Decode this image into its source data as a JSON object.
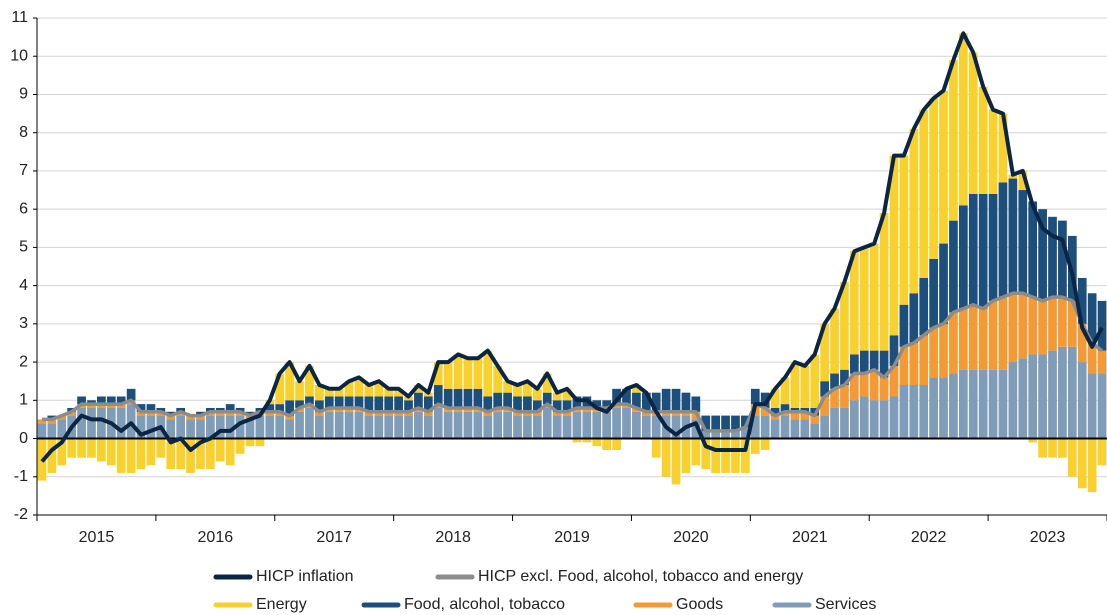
{
  "chart_data": {
    "type": "bar",
    "categories": [
      null,
      null,
      null,
      null,
      null,
      null,
      "2015",
      null,
      null,
      null,
      null,
      null,
      null,
      null,
      null,
      null,
      null,
      null,
      "2016",
      null,
      null,
      null,
      null,
      null,
      null,
      null,
      null,
      null,
      null,
      null,
      "2017",
      null,
      null,
      null,
      null,
      null,
      null,
      null,
      null,
      null,
      null,
      null,
      "2018",
      null,
      null,
      null,
      null,
      null,
      null,
      null,
      null,
      null,
      null,
      null,
      "2019",
      null,
      null,
      null,
      null,
      null,
      null,
      null,
      null,
      null,
      null,
      null,
      "2020",
      null,
      null,
      null,
      null,
      null,
      null,
      null,
      null,
      null,
      null,
      null,
      "2021",
      null,
      null,
      null,
      null,
      null,
      null,
      null,
      null,
      null,
      null,
      null,
      "2022",
      null,
      null,
      null,
      null,
      null,
      null,
      null,
      null,
      null,
      null,
      null,
      "2023",
      null,
      null,
      null,
      null,
      null
    ],
    "ylim": [
      -2,
      11
    ],
    "yticks": [
      -2,
      -1,
      0,
      1,
      2,
      3,
      4,
      5,
      6,
      7,
      8,
      9,
      10,
      11
    ],
    "grid": true,
    "series": [
      {
        "name": "HICP inflation",
        "type": "line",
        "color": "#0b2545",
        "values": [
          -0.6,
          -0.3,
          -0.1,
          0.3,
          0.6,
          0.5,
          0.5,
          0.4,
          0.2,
          0.4,
          0.1,
          0.2,
          0.3,
          -0.1,
          0.0,
          -0.3,
          -0.1,
          0.0,
          0.2,
          0.2,
          0.4,
          0.5,
          0.6,
          1.0,
          1.7,
          2.0,
          1.5,
          1.9,
          1.4,
          1.3,
          1.3,
          1.5,
          1.6,
          1.4,
          1.5,
          1.3,
          1.3,
          1.1,
          1.4,
          1.2,
          2.0,
          2.0,
          2.2,
          2.1,
          2.1,
          2.3,
          1.9,
          1.5,
          1.4,
          1.5,
          1.3,
          1.7,
          1.2,
          1.3,
          1.0,
          1.0,
          0.8,
          0.7,
          1.0,
          1.3,
          1.4,
          1.2,
          0.7,
          0.3,
          0.1,
          0.3,
          0.4,
          -0.2,
          -0.3,
          -0.3,
          -0.3,
          -0.3,
          0.9,
          0.9,
          1.3,
          1.6,
          2.0,
          1.9,
          2.2,
          3.0,
          3.4,
          4.1,
          4.9,
          5.0,
          5.1,
          5.9,
          7.4,
          7.4,
          8.1,
          8.6,
          8.9,
          9.1,
          9.9,
          10.6,
          10.1,
          9.2,
          8.6,
          8.5,
          6.9,
          7.0,
          6.1,
          5.5,
          5.3,
          5.2,
          4.3,
          2.9,
          2.4,
          2.9
        ]
      },
      {
        "name": "HICP excl. Food, alcohol, tobacco and energy",
        "type": "line",
        "color": "#8c8c8c",
        "values": [
          0.5,
          0.5,
          0.6,
          0.7,
          0.9,
          0.9,
          0.9,
          0.9,
          0.9,
          1.0,
          0.7,
          0.7,
          0.7,
          0.6,
          0.7,
          0.6,
          0.6,
          0.7,
          0.7,
          0.7,
          0.7,
          0.6,
          0.7,
          0.7,
          0.7,
          0.6,
          0.8,
          0.9,
          0.7,
          0.8,
          0.8,
          0.8,
          0.8,
          0.7,
          0.7,
          0.7,
          0.7,
          0.7,
          0.8,
          0.7,
          0.9,
          0.8,
          0.8,
          0.8,
          0.8,
          0.7,
          0.8,
          0.8,
          0.7,
          0.7,
          0.7,
          0.9,
          0.7,
          0.7,
          0.8,
          0.8,
          0.8,
          0.8,
          0.9,
          0.9,
          0.8,
          0.7,
          0.7,
          0.7,
          0.7,
          0.7,
          0.7,
          0.2,
          0.2,
          0.2,
          0.2,
          0.3,
          0.9,
          0.8,
          0.6,
          0.7,
          0.7,
          0.7,
          0.6,
          1.1,
          1.3,
          1.4,
          1.7,
          1.7,
          1.8,
          1.6,
          1.9,
          2.4,
          2.5,
          2.7,
          2.9,
          3.0,
          3.3,
          3.4,
          3.5,
          3.4,
          3.6,
          3.7,
          3.8,
          3.8,
          3.7,
          3.6,
          3.7,
          3.7,
          3.6,
          3.0,
          2.5,
          2.3
        ]
      },
      {
        "name": "Energy",
        "type": "bar",
        "color": "#f8d12f",
        "values": [
          -1.1,
          -0.9,
          -0.7,
          -0.5,
          -0.5,
          -0.5,
          -0.6,
          -0.7,
          -0.9,
          -0.9,
          -0.8,
          -0.7,
          -0.5,
          -0.8,
          -0.8,
          -0.9,
          -0.8,
          -0.8,
          -0.6,
          -0.7,
          -0.4,
          -0.2,
          -0.2,
          0.1,
          0.8,
          1.0,
          0.5,
          0.8,
          0.4,
          0.2,
          0.2,
          0.4,
          0.5,
          0.3,
          0.4,
          0.2,
          0.2,
          0.1,
          0.2,
          0.1,
          0.6,
          0.7,
          0.9,
          0.8,
          0.8,
          1.2,
          0.7,
          0.3,
          0.3,
          0.4,
          0.3,
          0.5,
          0.2,
          0.3,
          -0.1,
          -0.1,
          -0.2,
          -0.3,
          -0.3,
          0.0,
          0.2,
          0.0,
          -0.5,
          -1.0,
          -1.2,
          -0.9,
          -0.7,
          -0.8,
          -0.9,
          -0.9,
          -0.9,
          -0.9,
          -0.4,
          -0.3,
          0.5,
          0.7,
          1.2,
          1.1,
          1.4,
          1.5,
          1.7,
          2.3,
          2.7,
          2.7,
          2.8,
          3.6,
          4.7,
          3.9,
          4.3,
          4.4,
          4.2,
          4.0,
          4.2,
          4.5,
          3.7,
          2.8,
          2.2,
          1.8,
          0.1,
          0.5,
          -0.1,
          -0.5,
          -0.5,
          -0.5,
          -1.0,
          -1.3,
          -1.4,
          -0.7
        ]
      },
      {
        "name": "Food, alcohol, tobacco",
        "type": "bar",
        "color": "#1d4f7c",
        "values": [
          0.0,
          0.1,
          0.0,
          0.1,
          0.2,
          0.1,
          0.2,
          0.2,
          0.2,
          0.3,
          0.2,
          0.2,
          0.1,
          0.1,
          0.1,
          0.0,
          0.1,
          0.1,
          0.1,
          0.2,
          0.1,
          0.1,
          0.1,
          0.2,
          0.2,
          0.4,
          0.2,
          0.2,
          0.3,
          0.3,
          0.3,
          0.3,
          0.3,
          0.4,
          0.4,
          0.4,
          0.4,
          0.3,
          0.4,
          0.4,
          0.5,
          0.5,
          0.5,
          0.5,
          0.5,
          0.4,
          0.4,
          0.4,
          0.4,
          0.4,
          0.3,
          0.3,
          0.3,
          0.3,
          0.3,
          0.3,
          0.2,
          0.2,
          0.4,
          0.4,
          0.4,
          0.5,
          0.5,
          0.6,
          0.6,
          0.5,
          0.4,
          0.4,
          0.4,
          0.4,
          0.4,
          0.3,
          0.4,
          0.4,
          0.2,
          0.2,
          0.1,
          0.1,
          0.2,
          0.4,
          0.4,
          0.4,
          0.5,
          0.6,
          0.5,
          0.7,
          0.8,
          1.1,
          1.3,
          1.5,
          1.8,
          2.1,
          2.4,
          2.7,
          2.9,
          3.0,
          2.8,
          3.0,
          3.0,
          2.7,
          2.5,
          2.4,
          2.1,
          2.0,
          1.7,
          1.2,
          1.3,
          1.3
        ]
      },
      {
        "name": "Goods",
        "type": "bar",
        "color": "#f39a35",
        "values": [
          0.1,
          0.1,
          0.1,
          0.1,
          0.1,
          0.1,
          0.1,
          0.1,
          0.1,
          0.1,
          0.1,
          0.1,
          0.1,
          0.1,
          0.1,
          0.1,
          0.1,
          0.1,
          0.1,
          0.1,
          0.1,
          0.1,
          0.1,
          0.1,
          0.1,
          0.1,
          0.1,
          0.1,
          0.1,
          0.1,
          0.1,
          0.1,
          0.1,
          0.1,
          0.1,
          0.1,
          0.1,
          0.1,
          0.1,
          0.1,
          0.1,
          0.1,
          0.1,
          0.1,
          0.1,
          0.1,
          0.1,
          0.1,
          0.1,
          0.1,
          0.1,
          0.1,
          0.1,
          0.1,
          0.1,
          0.1,
          0.1,
          0.1,
          0.1,
          0.1,
          0.1,
          0.1,
          0.1,
          0.1,
          0.1,
          0.1,
          0.2,
          0.0,
          0.0,
          0.0,
          0.0,
          0.0,
          0.3,
          0.2,
          0.1,
          0.1,
          0.2,
          0.2,
          0.2,
          0.5,
          0.5,
          0.6,
          0.7,
          0.6,
          0.8,
          0.6,
          0.8,
          1.0,
          1.1,
          1.3,
          1.3,
          1.4,
          1.6,
          1.6,
          1.7,
          1.6,
          1.8,
          1.9,
          1.8,
          1.7,
          1.5,
          1.4,
          1.4,
          1.3,
          1.2,
          1.0,
          0.8,
          0.6
        ]
      },
      {
        "name": "Services",
        "type": "bar",
        "color": "#7f9cb8",
        "values": [
          0.4,
          0.4,
          0.5,
          0.6,
          0.8,
          0.8,
          0.8,
          0.8,
          0.8,
          0.9,
          0.6,
          0.6,
          0.6,
          0.5,
          0.6,
          0.5,
          0.5,
          0.6,
          0.6,
          0.6,
          0.6,
          0.5,
          0.6,
          0.6,
          0.6,
          0.5,
          0.7,
          0.8,
          0.6,
          0.7,
          0.7,
          0.7,
          0.7,
          0.6,
          0.6,
          0.6,
          0.6,
          0.6,
          0.7,
          0.6,
          0.8,
          0.7,
          0.7,
          0.7,
          0.7,
          0.6,
          0.7,
          0.7,
          0.6,
          0.6,
          0.6,
          0.8,
          0.6,
          0.6,
          0.7,
          0.7,
          0.7,
          0.7,
          0.8,
          0.8,
          0.7,
          0.6,
          0.6,
          0.6,
          0.6,
          0.6,
          0.5,
          0.2,
          0.2,
          0.2,
          0.2,
          0.3,
          0.6,
          0.6,
          0.5,
          0.6,
          0.5,
          0.5,
          0.4,
          0.6,
          0.8,
          0.8,
          1.0,
          1.1,
          1.0,
          1.0,
          1.1,
          1.4,
          1.4,
          1.4,
          1.6,
          1.6,
          1.7,
          1.8,
          1.8,
          1.8,
          1.8,
          1.8,
          2.0,
          2.1,
          2.2,
          2.2,
          2.3,
          2.4,
          2.4,
          2.0,
          1.7,
          1.7
        ]
      }
    ]
  }
}
